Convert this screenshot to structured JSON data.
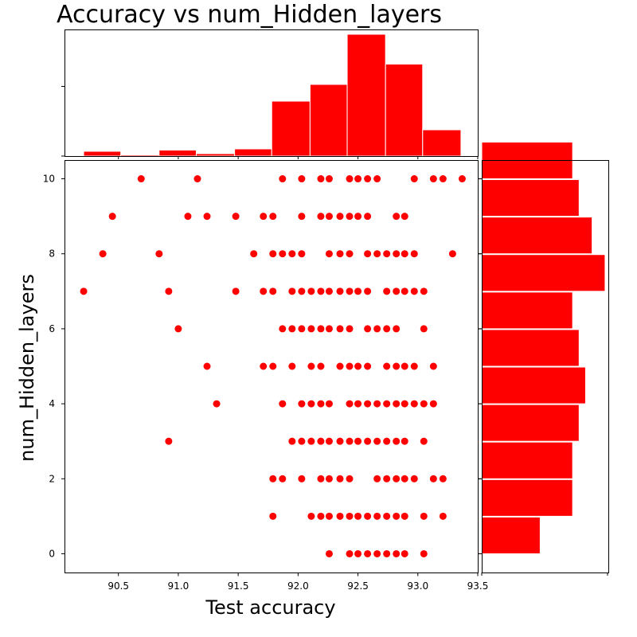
{
  "chart_data": {
    "type": "scatter",
    "title": "Accuracy vs num_Hidden_layers",
    "xlabel": "Test accuracy",
    "ylabel": "num_Hidden_layers",
    "xlim": [
      90.05,
      93.5
    ],
    "ylim": [
      -0.5,
      10.5
    ],
    "xticks": [
      "90.5",
      "91.0",
      "91.5",
      "92.0",
      "92.5",
      "93.0",
      "93.5"
    ],
    "yticks": [
      "0",
      "2",
      "4",
      "6",
      "8",
      "10"
    ],
    "color": "#ff0000",
    "series": [
      {
        "name": "0",
        "y": 0,
        "x": [
          92.26,
          92.43,
          92.5,
          92.58,
          92.66,
          92.74,
          92.82,
          92.89,
          93.05
        ]
      },
      {
        "name": "1",
        "y": 1,
        "x": [
          91.79,
          92.11,
          92.19,
          92.26,
          92.35,
          92.43,
          92.5,
          92.58,
          92.66,
          92.74,
          92.82,
          92.89,
          93.05,
          93.21
        ]
      },
      {
        "name": "2",
        "y": 2,
        "x": [
          91.79,
          91.87,
          92.03,
          92.19,
          92.26,
          92.35,
          92.43,
          92.66,
          92.74,
          92.82,
          92.89,
          92.97,
          93.13,
          93.21
        ]
      },
      {
        "name": "3",
        "y": 3,
        "x": [
          90.92,
          91.95,
          92.03,
          92.11,
          92.19,
          92.26,
          92.35,
          92.43,
          92.5,
          92.58,
          92.66,
          92.74,
          92.82,
          92.89,
          93.05
        ]
      },
      {
        "name": "4",
        "y": 4,
        "x": [
          91.32,
          91.87,
          92.03,
          92.11,
          92.19,
          92.26,
          92.43,
          92.5,
          92.58,
          92.66,
          92.74,
          92.82,
          92.89,
          92.97,
          93.05,
          93.13
        ]
      },
      {
        "name": "5",
        "y": 5,
        "x": [
          91.24,
          91.71,
          91.79,
          91.95,
          92.11,
          92.19,
          92.35,
          92.43,
          92.5,
          92.58,
          92.74,
          92.82,
          92.89,
          92.97,
          93.13
        ]
      },
      {
        "name": "6",
        "y": 6,
        "x": [
          91.0,
          91.87,
          91.95,
          92.03,
          92.11,
          92.19,
          92.26,
          92.35,
          92.43,
          92.58,
          92.66,
          92.74,
          92.82,
          93.05
        ]
      },
      {
        "name": "7",
        "y": 7,
        "x": [
          90.21,
          90.92,
          91.48,
          91.71,
          91.79,
          91.95,
          92.03,
          92.11,
          92.19,
          92.26,
          92.35,
          92.43,
          92.5,
          92.58,
          92.74,
          92.82,
          92.89,
          92.97,
          93.05
        ]
      },
      {
        "name": "8",
        "y": 8,
        "x": [
          90.37,
          90.84,
          91.63,
          91.79,
          91.87,
          91.95,
          92.03,
          92.26,
          92.35,
          92.43,
          92.58,
          92.66,
          92.74,
          92.82,
          92.89,
          92.97,
          93.29
        ]
      },
      {
        "name": "9",
        "y": 9,
        "x": [
          90.45,
          91.08,
          91.24,
          91.48,
          91.71,
          91.79,
          92.03,
          92.19,
          92.26,
          92.35,
          92.43,
          92.5,
          92.58,
          92.82,
          92.89
        ]
      },
      {
        "name": "10",
        "y": 10,
        "x": [
          90.69,
          91.16,
          91.87,
          92.03,
          92.19,
          92.26,
          92.43,
          92.5,
          92.58,
          92.66,
          92.97,
          93.13,
          93.21,
          93.37
        ]
      }
    ],
    "top_histogram": {
      "type": "bar",
      "orientation": "vertical",
      "bin_edges": [
        90.21,
        90.52,
        90.84,
        91.15,
        91.47,
        91.78,
        92.1,
        92.41,
        92.73,
        93.04,
        93.36
      ],
      "counts": [
        4,
        1,
        5,
        2,
        6,
        46,
        60,
        102,
        77,
        22
      ],
      "ylim": [
        0,
        106
      ],
      "yticks": [
        "",
        ""
      ]
    },
    "right_histogram": {
      "type": "bar",
      "orientation": "horizontal",
      "categories": [
        "0",
        "1",
        "2",
        "3",
        "4",
        "5",
        "6",
        "7",
        "8",
        "9",
        "10"
      ],
      "counts": [
        9,
        14,
        14,
        15,
        16,
        15,
        14,
        19,
        17,
        15,
        14
      ],
      "xlim": [
        0,
        19.5
      ],
      "xticks": [
        ""
      ]
    }
  }
}
